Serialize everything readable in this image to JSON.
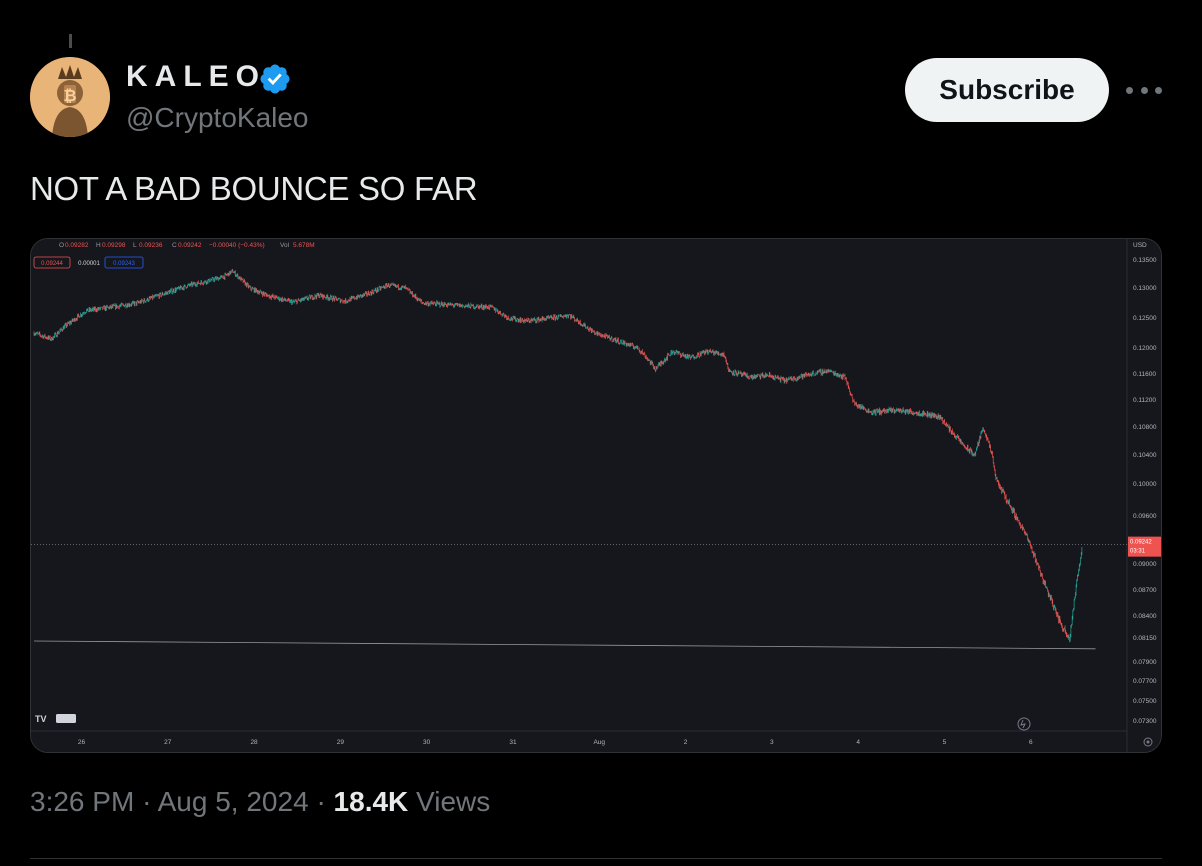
{
  "author": {
    "display_name": "KALEO",
    "handle": "@CryptoKaleo",
    "verified_icon": "verified-badge-icon",
    "avatar_icon": "avatar-image"
  },
  "actions": {
    "subscribe_label": "Subscribe",
    "more_icon": "more-horizontal-icon"
  },
  "tweet": {
    "text": "NOT A BAD BOUNCE SO FAR"
  },
  "meta": {
    "time": "3:26 PM",
    "separator": "·",
    "date": "Aug 5, 2024",
    "views_count": "18.4K",
    "views_label": "Views"
  },
  "colors": {
    "background": "#000000",
    "chart_bg": "#15171d",
    "up": "#26a69a",
    "down": "#ef5350",
    "subscribe_bg": "#eff3f4",
    "verified": "#1d9bf0"
  },
  "chart_data": {
    "type": "candlestick",
    "legend": {
      "open": "O",
      "open_value": "0.09282",
      "high": "H",
      "high_value": "0.09298",
      "low": "L",
      "low_value": "0.09236",
      "close": "C",
      "close_value": "0.09242",
      "change": "−0.00040 (−0.43%)",
      "volume_label": "Vol",
      "volume_value": "5.678M"
    },
    "sell_price": "0.09244",
    "spread": "0.00001",
    "buy_price": "0.09243",
    "currency": "USD",
    "y_ticks": [
      "0.13500",
      "0.13000",
      "0.12500",
      "0.12000",
      "0.11600",
      "0.11200",
      "0.10800",
      "0.10400",
      "0.10000",
      "0.09600",
      "0.09000",
      "0.08700",
      "0.08400",
      "0.08150",
      "0.07900",
      "0.07700",
      "0.07500",
      "0.07300"
    ],
    "current_price": "0.09242",
    "countdown": "03:31",
    "x_ticks": [
      "26",
      "27",
      "28",
      "29",
      "30",
      "31",
      "Aug",
      "2",
      "3",
      "4",
      "5",
      "6"
    ],
    "watermark": "TV PRO",
    "price_path": [
      [
        25.0,
        0.1225
      ],
      [
        25.2,
        0.1215
      ],
      [
        25.35,
        0.1235
      ],
      [
        25.6,
        0.1262
      ],
      [
        25.9,
        0.1268
      ],
      [
        26.2,
        0.1275
      ],
      [
        26.5,
        0.129
      ],
      [
        26.8,
        0.1305
      ],
      [
        27.0,
        0.1312
      ],
      [
        27.2,
        0.132
      ],
      [
        27.3,
        0.133
      ],
      [
        27.5,
        0.13
      ],
      [
        27.7,
        0.1288
      ],
      [
        28.0,
        0.1276
      ],
      [
        28.3,
        0.1288
      ],
      [
        28.6,
        0.1278
      ],
      [
        28.9,
        0.1292
      ],
      [
        29.1,
        0.1305
      ],
      [
        29.3,
        0.13
      ],
      [
        29.5,
        0.1275
      ],
      [
        29.8,
        0.1272
      ],
      [
        30.0,
        0.127
      ],
      [
        30.3,
        0.1268
      ],
      [
        30.5,
        0.125
      ],
      [
        30.7,
        0.1245
      ],
      [
        31.0,
        0.125
      ],
      [
        31.2,
        0.1255
      ],
      [
        31.5,
        0.1225
      ],
      [
        31.8,
        0.121
      ],
      [
        32.0,
        0.12
      ],
      [
        32.1,
        0.1185
      ],
      [
        32.2,
        0.1168
      ],
      [
        32.4,
        0.1195
      ],
      [
        32.6,
        0.1185
      ],
      [
        32.8,
        0.1195
      ],
      [
        33.0,
        0.119
      ],
      [
        33.05,
        0.1165
      ],
      [
        33.3,
        0.1155
      ],
      [
        33.5,
        0.1158
      ],
      [
        33.7,
        0.115
      ],
      [
        34.0,
        0.116
      ],
      [
        34.2,
        0.1165
      ],
      [
        34.4,
        0.1155
      ],
      [
        34.5,
        0.1115
      ],
      [
        34.7,
        0.1102
      ],
      [
        35.0,
        0.1105
      ],
      [
        35.3,
        0.11
      ],
      [
        35.5,
        0.1095
      ],
      [
        35.6,
        0.1078
      ],
      [
        35.8,
        0.105
      ],
      [
        35.9,
        0.104
      ],
      [
        36.0,
        0.108
      ],
      [
        36.1,
        0.104
      ],
      [
        36.15,
        0.1005
      ],
      [
        36.5,
        0.0935
      ],
      [
        36.7,
        0.088
      ],
      [
        36.9,
        0.083
      ],
      [
        37.0,
        0.0815
      ],
      [
        37.05,
        0.0855
      ],
      [
        37.1,
        0.089
      ],
      [
        37.15,
        0.0924
      ]
    ],
    "lines": [
      {
        "name": "current-price-line",
        "y": 0.09242,
        "style": "dotted"
      },
      {
        "name": "support-trend-line",
        "from": [
          25.0,
          0.0815
        ],
        "to": [
          37.3,
          0.081
        ],
        "style": "solid"
      }
    ]
  }
}
